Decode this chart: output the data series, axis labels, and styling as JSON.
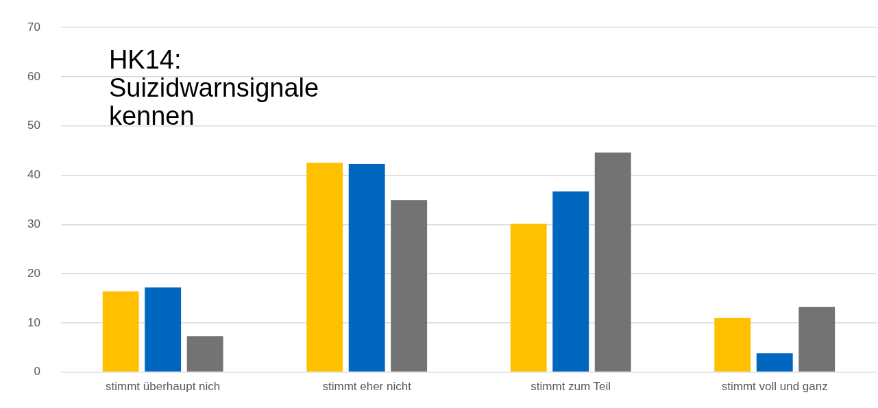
{
  "chart_data": {
    "type": "bar",
    "title": "HK14: Suizidwarnsignale kennen",
    "categories": [
      "stimmt überhaupt nich",
      "stimmt eher nicht",
      "stimmt zum Teil",
      "stimmt voll und ganz"
    ],
    "series": [
      {
        "color": "#ffc000",
        "values": [
          16.4,
          42.5,
          30.1,
          11.0
        ]
      },
      {
        "color": "#0066bf",
        "values": [
          17.2,
          42.3,
          36.7,
          3.8
        ]
      },
      {
        "color": "#737373",
        "values": [
          7.3,
          34.9,
          44.6,
          13.2
        ]
      }
    ],
    "ylim": [
      0,
      70
    ],
    "yticks": [
      0,
      10,
      20,
      30,
      40,
      50,
      60,
      70
    ],
    "grid": "y",
    "legend": false
  }
}
